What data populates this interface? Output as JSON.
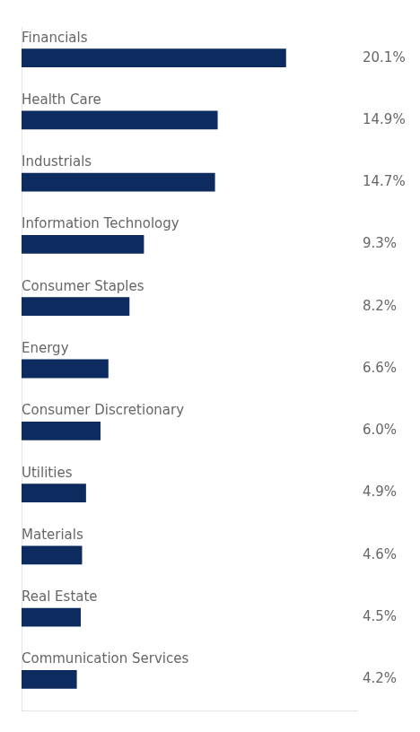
{
  "chart_data": {
    "type": "bar",
    "orientation": "horizontal",
    "categories": [
      "Financials",
      "Health Care",
      "Industrials",
      "Information Technology",
      "Consumer Staples",
      "Energy",
      "Consumer Discretionary",
      "Utilities",
      "Materials",
      "Real Estate",
      "Communication Services"
    ],
    "values": [
      20.1,
      14.9,
      14.7,
      9.3,
      8.2,
      6.6,
      6.0,
      4.9,
      4.6,
      4.5,
      4.2
    ],
    "value_labels": [
      "20.1%",
      "14.9%",
      "14.7%",
      "9.3%",
      "8.2%",
      "6.6%",
      "6.0%",
      "4.9%",
      "4.6%",
      "4.5%",
      "4.2%"
    ],
    "color": "#0d2b5e",
    "xlim": [
      0,
      25.5
    ],
    "grid": false,
    "data_labels": true,
    "tick_labels": "y"
  }
}
